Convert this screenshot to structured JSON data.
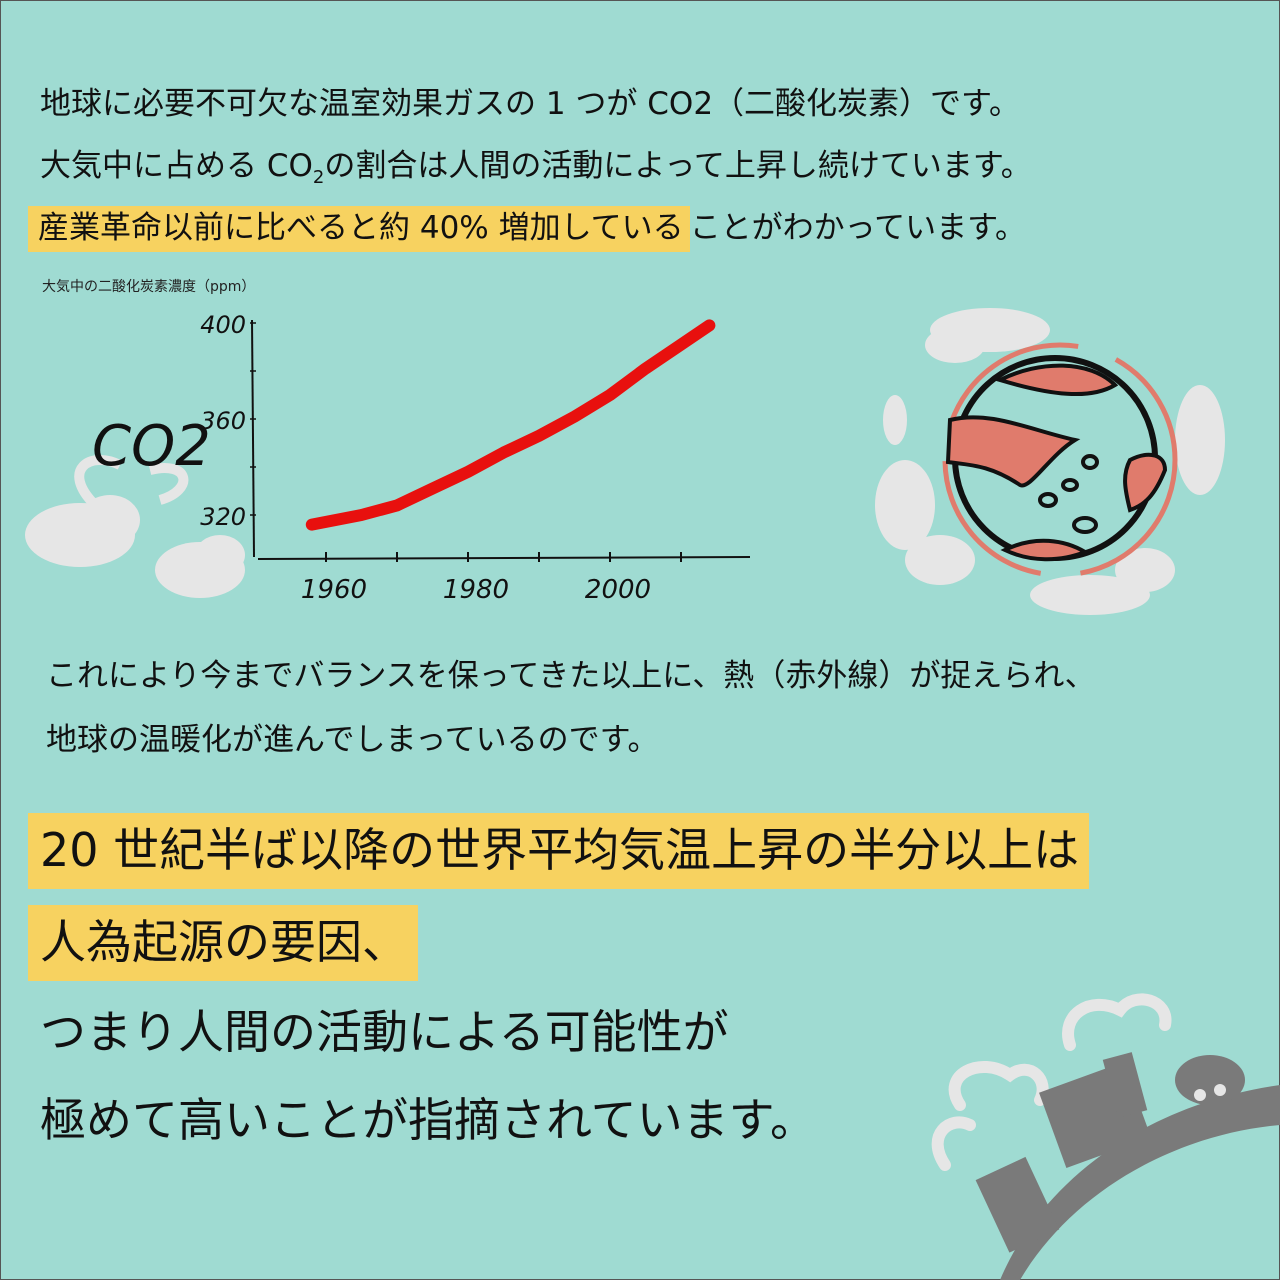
{
  "intro": {
    "line1": "地球に必要不可欠な温室効果ガスの 1 つが CO2（二酸化炭素）です。",
    "line2_a": "大気中に占める CO",
    "line2_sub": "2",
    "line2_b": "の割合は人間の活動によって上昇し続けています。",
    "line3_highlight": "産業革命以前に比べると約 40% 増加している",
    "line3_rest": "ことがわかっています。"
  },
  "co2_label": "CO2",
  "middle": {
    "line1": "これにより今までバランスを保ってきた以上に、熱（赤外線）が捉えられ、",
    "line2": "地球の温暖化が進んでしまっているのです。"
  },
  "conclusion": {
    "line1": "20 世紀半ば以降の世界平均気温上昇の半分以上は",
    "line2": "人為起源の要因、",
    "line3": "つまり人間の活動による可能性が",
    "line4": "極めて高いことが指摘されています。"
  },
  "colors": {
    "background": "#9fdbd2",
    "highlight": "#f7d260",
    "line": "#e8100e",
    "earth_land": "#e07b6c",
    "cloud": "#e6e6e6",
    "factory": "#7a7a7a"
  },
  "chart_data": {
    "type": "line",
    "title": "",
    "ylabel": "大気中の二酸化炭素濃度（ppm）",
    "xlabel": "",
    "x_ticks": [
      1960,
      1980,
      2000
    ],
    "y_ticks": [
      320,
      360,
      400
    ],
    "xlim": [
      1955,
      2020
    ],
    "ylim": [
      305,
      402
    ],
    "series": [
      {
        "x": [
          1958,
          1965,
          1970,
          1975,
          1980,
          1985,
          1990,
          1995,
          2000,
          2005,
          2010,
          2014
        ],
        "y": [
          316,
          320,
          324,
          331,
          338,
          346,
          353,
          361,
          370,
          381,
          391,
          399
        ]
      }
    ],
    "grid": false
  }
}
